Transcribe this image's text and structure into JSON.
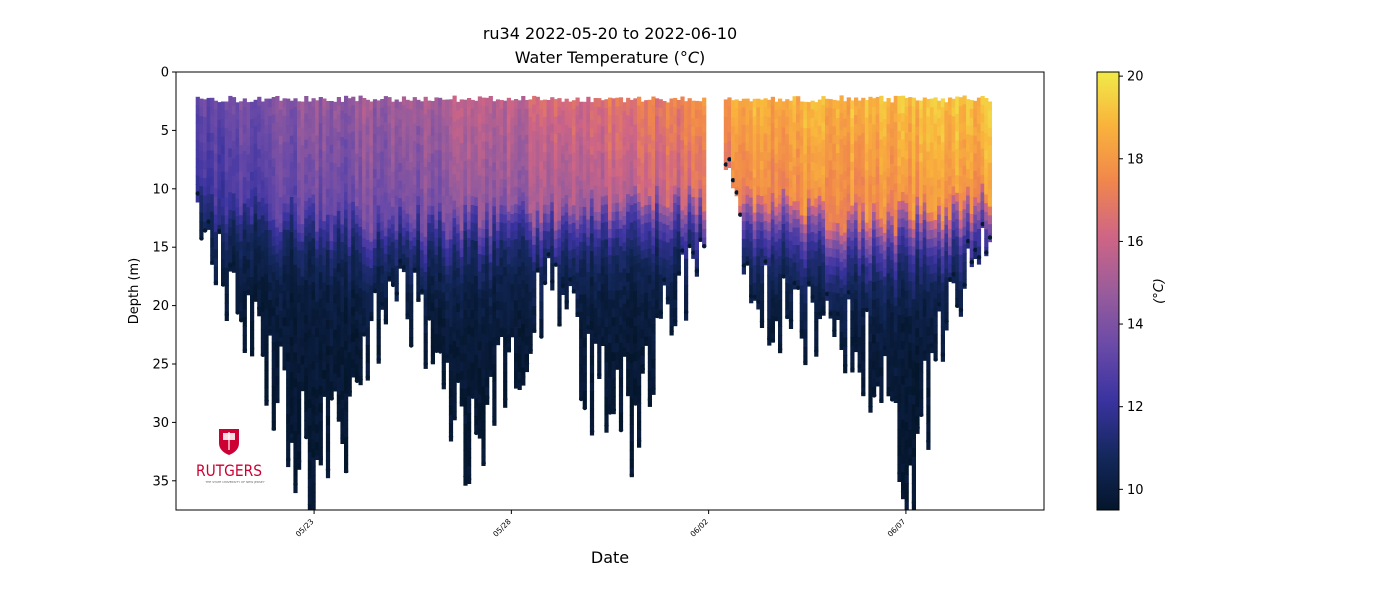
{
  "chart_data": {
    "type": "scatter",
    "title": "ru34 2022-05-20 to 2022-06-10",
    "subtitle_prefix": "Water Temperature (",
    "subtitle_unit": "°C",
    "subtitle_suffix": ")",
    "xlabel": "Date",
    "ylabel": "Depth (m)",
    "colorbar_label": "(°C)",
    "x_range": [
      "2022-05-19T12:00",
      "2022-06-10T12:00"
    ],
    "data_range": [
      "2022-05-20T00:00",
      "2022-06-09T02:00"
    ],
    "gap": [
      "2022-06-01T22:00",
      "2022-06-02T08:00"
    ],
    "y_range": [
      0,
      37.5
    ],
    "y_inverted": true,
    "y_ticks": [
      0,
      5,
      10,
      15,
      20,
      25,
      30,
      35
    ],
    "x_ticks": [
      {
        "date": "2022-05-23",
        "label": "05/23"
      },
      {
        "date": "2022-05-28",
        "label": "05/28"
      },
      {
        "date": "2022-06-02",
        "label": "06/02"
      },
      {
        "date": "2022-06-07",
        "label": "06/07"
      }
    ],
    "colorbar": {
      "min": 9.5,
      "max": 20.1,
      "ticks": [
        10,
        12,
        14,
        16,
        18,
        20
      ],
      "colormap": "thermal",
      "stops": [
        "#04162b",
        "#14285d",
        "#3a33a0",
        "#6a4aa8",
        "#9a5c9b",
        "#cf6585",
        "#f0864c",
        "#f9b23c",
        "#f1ea48"
      ]
    },
    "profile_depth": [
      {
        "date": "2022-05-20T00:00",
        "max_depth": 13
      },
      {
        "date": "2022-05-21T00:00",
        "max_depth": 20
      },
      {
        "date": "2022-05-22T00:00",
        "max_depth": 28
      },
      {
        "date": "2022-05-23T00:00",
        "max_depth": 36
      },
      {
        "date": "2022-05-24T00:00",
        "max_depth": 28
      },
      {
        "date": "2022-05-25T00:00",
        "max_depth": 18
      },
      {
        "date": "2022-05-26T00:00",
        "max_depth": 24
      },
      {
        "date": "2022-05-27T00:00",
        "max_depth": 33
      },
      {
        "date": "2022-05-28T00:00",
        "max_depth": 25
      },
      {
        "date": "2022-05-29T00:00",
        "max_depth": 18
      },
      {
        "date": "2022-05-30T00:00",
        "max_depth": 27
      },
      {
        "date": "2022-05-31T00:00",
        "max_depth": 30
      },
      {
        "date": "2022-06-01T00:00",
        "max_depth": 20
      },
      {
        "date": "2022-06-01T22:00",
        "max_depth": 15
      },
      {
        "date": "2022-06-02T08:00",
        "max_depth": 7
      },
      {
        "date": "2022-06-03T00:00",
        "max_depth": 18
      },
      {
        "date": "2022-06-04T00:00",
        "max_depth": 22
      },
      {
        "date": "2022-06-05T00:00",
        "max_depth": 22
      },
      {
        "date": "2022-06-06T00:00",
        "max_depth": 25
      },
      {
        "date": "2022-06-07T00:00",
        "max_depth": 34
      },
      {
        "date": "2022-06-08T00:00",
        "max_depth": 22
      },
      {
        "date": "2022-06-09T02:00",
        "max_depth": 13
      }
    ],
    "surface_layer": [
      {
        "date": "2022-05-20T00:00",
        "mixed_layer_depth": 10,
        "surface_temp": 13.5
      },
      {
        "date": "2022-05-23T00:00",
        "mixed_layer_depth": 12,
        "surface_temp": 14.8
      },
      {
        "date": "2022-05-26T00:00",
        "mixed_layer_depth": 12,
        "surface_temp": 15.5
      },
      {
        "date": "2022-05-29T00:00",
        "mixed_layer_depth": 11,
        "surface_temp": 16.5
      },
      {
        "date": "2022-06-01T00:00",
        "mixed_layer_depth": 10,
        "surface_temp": 17.5
      },
      {
        "date": "2022-06-03T00:00",
        "mixed_layer_depth": 10,
        "surface_temp": 18.8
      },
      {
        "date": "2022-06-06T00:00",
        "mixed_layer_depth": 12,
        "surface_temp": 19.2
      },
      {
        "date": "2022-06-09T00:00",
        "mixed_layer_depth": 10,
        "surface_temp": 19.5
      }
    ],
    "bottom_temp": 9.7,
    "surface_min_depth": 2
  },
  "logo": {
    "wordmark": "RUTGERS",
    "tagline": "THE STATE UNIVERSITY OF NEW JERSEY",
    "color": "#cc0033"
  }
}
